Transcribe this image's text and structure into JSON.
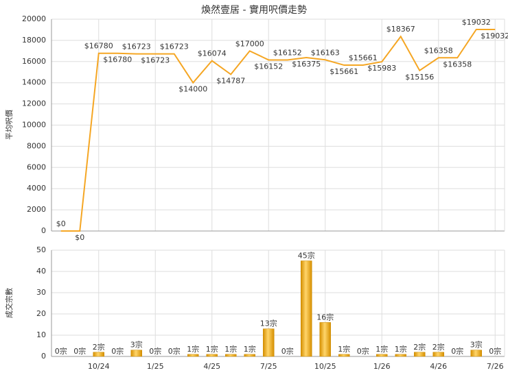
{
  "chart_data": [
    {
      "type": "line",
      "title": "煥然壹居 - 實用呎價走勢",
      "ylabel": "平均呎價",
      "color": "#f5a623",
      "values": [
        0,
        0,
        16780,
        16780,
        16723,
        16723,
        16723,
        14000,
        16074,
        14787,
        17000,
        16152,
        16152,
        16375,
        16163,
        15661,
        15661,
        15983,
        18367,
        15156,
        16358,
        16358,
        19032,
        19032
      ],
      "value_labels": [
        "$0",
        "$0",
        "$16780",
        "$16780",
        "$16723",
        "$16723",
        "$16723",
        "$14000",
        "$16074",
        "$14787",
        "$17000",
        "$16152",
        "$16152",
        "$16375",
        "$16163",
        "$15661",
        "$15661",
        "$15983",
        "$18367",
        "$15156",
        "$16358",
        "$16358",
        "$19032",
        "$19032"
      ],
      "ylim": [
        0,
        20000
      ],
      "yticks": [
        0,
        2000,
        4000,
        6000,
        8000,
        10000,
        12000,
        14000,
        16000,
        18000,
        20000
      ],
      "grid": true
    },
    {
      "type": "bar",
      "ylabel": "成交宗數",
      "color": "#e8a317",
      "categories": [
        null,
        null,
        "10/24",
        null,
        null,
        "1/25",
        null,
        null,
        "4/25",
        null,
        null,
        "7/25",
        null,
        null,
        "10/25",
        null,
        null,
        "1/26",
        null,
        null,
        "4/26",
        null,
        null,
        "7/26"
      ],
      "values": [
        0,
        0,
        2,
        0,
        3,
        0,
        0,
        1,
        1,
        1,
        1,
        13,
        0,
        45,
        16,
        1,
        0,
        1,
        1,
        2,
        2,
        0,
        3,
        0
      ],
      "value_labels": [
        "0宗",
        "0宗",
        "2宗",
        "0宗",
        "3宗",
        "0宗",
        "0宗",
        "1宗",
        "1宗",
        "1宗",
        "1宗",
        "13宗",
        "0宗",
        "45宗",
        "16宗",
        "1宗",
        "0宗",
        "1宗",
        "1宗",
        "2宗",
        "2宗",
        "0宗",
        "3宗",
        "0宗"
      ],
      "ylim": [
        0,
        50
      ],
      "yticks": [
        0,
        10,
        20,
        30,
        40,
        50
      ],
      "grid": true
    }
  ]
}
